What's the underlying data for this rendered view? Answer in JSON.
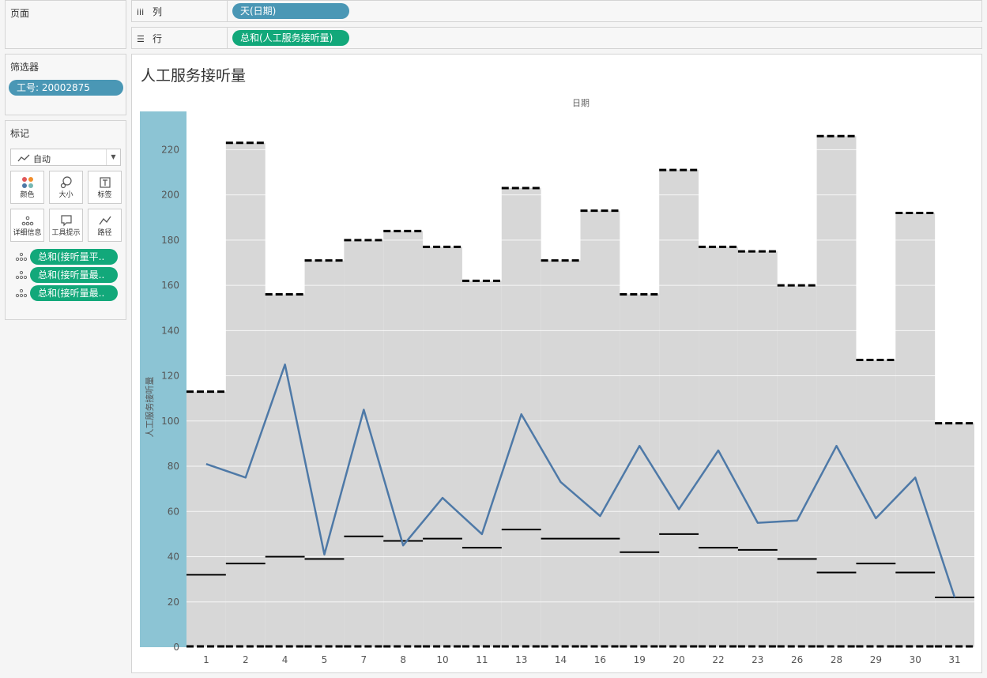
{
  "pages_card": {
    "title": "页面"
  },
  "filters_card": {
    "title": "筛选器",
    "filters": [
      "工号: 20002875"
    ]
  },
  "marks_card": {
    "title": "标记",
    "mark_type": "自动",
    "buttons": [
      {
        "label": "颜色",
        "icon": "color-icon"
      },
      {
        "label": "大小",
        "icon": "size-icon"
      },
      {
        "label": "标签",
        "icon": "label-icon"
      },
      {
        "label": "详细信息",
        "icon": "detail-icon"
      },
      {
        "label": "工具提示",
        "icon": "tooltip-icon"
      },
      {
        "label": "路径",
        "icon": "path-icon"
      }
    ],
    "fields": [
      "总和(接听量平..",
      "总和(接听量最..",
      "总和(接听量最.."
    ]
  },
  "columns_shelf": {
    "label": "列",
    "pill": "天(日期)"
  },
  "rows_shelf": {
    "label": "行",
    "pill": "总和(人工服务接听量)"
  },
  "colors": {
    "band": "#d7d7d7",
    "line": "#4e79a7",
    "axis_band": "#8cc4d4",
    "pill_blue": "#4a97b5",
    "pill_green": "#12a87a"
  },
  "chart_data": {
    "type": "bar",
    "title": "人工服务接听量",
    "xlabel": "日期",
    "ylabel": "人工服务接听量",
    "ylim": [
      0,
      235
    ],
    "yticks": [
      0,
      20,
      40,
      60,
      80,
      100,
      120,
      140,
      160,
      180,
      200,
      220
    ],
    "grid": true,
    "categories": [
      "1",
      "2",
      "4",
      "5",
      "7",
      "8",
      "10",
      "11",
      "13",
      "14",
      "16",
      "19",
      "20",
      "22",
      "23",
      "26",
      "28",
      "29",
      "30",
      "31"
    ],
    "series": [
      {
        "values": [
          113,
          223,
          156,
          171,
          180,
          184,
          177,
          162,
          203,
          171,
          193,
          156,
          211,
          177,
          175,
          160,
          226,
          127,
          192,
          99
        ]
      },
      {
        "values": [
          32,
          37,
          40,
          39,
          49,
          47,
          48,
          44,
          52,
          48,
          48,
          42,
          50,
          44,
          43,
          39,
          33,
          37,
          33,
          22
        ]
      },
      {
        "values": [
          81,
          75,
          125,
          41,
          105,
          45,
          66,
          50,
          103,
          73,
          58,
          89,
          61,
          87,
          55,
          56,
          89,
          57,
          75,
          22
        ]
      },
      {
        "values": [
          0,
          0,
          0,
          0,
          0,
          0,
          0,
          0,
          0,
          0,
          0,
          0,
          0,
          0,
          0,
          0,
          0,
          0,
          0,
          0
        ]
      }
    ]
  }
}
